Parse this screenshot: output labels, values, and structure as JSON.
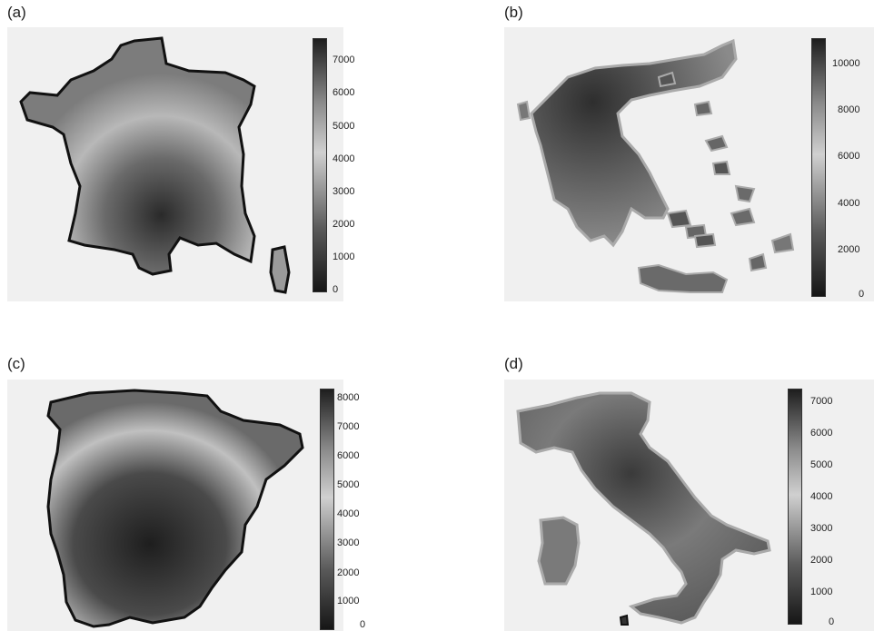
{
  "panels": [
    {
      "label": "(a)",
      "colorbar_ticks": [
        "7000",
        "6000",
        "5000",
        "4000",
        "3000",
        "2000",
        "1000",
        "0"
      ],
      "colorbar_range": [
        0,
        7700
      ]
    },
    {
      "label": "(b)",
      "colorbar_ticks": [
        "10000",
        "8000",
        "6000",
        "4000",
        "2000",
        "0"
      ],
      "colorbar_range": [
        0,
        11000
      ]
    },
    {
      "label": "(c)",
      "colorbar_ticks": [
        "8000",
        "7000",
        "6000",
        "5000",
        "4000",
        "3000",
        "2000",
        "1000",
        "0"
      ],
      "colorbar_range": [
        0,
        8400
      ]
    },
    {
      "label": "(d)",
      "colorbar_ticks": [
        "7000",
        "6000",
        "5000",
        "4000",
        "3000",
        "2000",
        "1000",
        "0"
      ],
      "colorbar_range": [
        0,
        7500
      ]
    }
  ],
  "colors": {
    "low": "#1a1a1a",
    "mid": "#c8c8c8",
    "high": "#2a2a2a",
    "background": "#f0f0f0"
  }
}
